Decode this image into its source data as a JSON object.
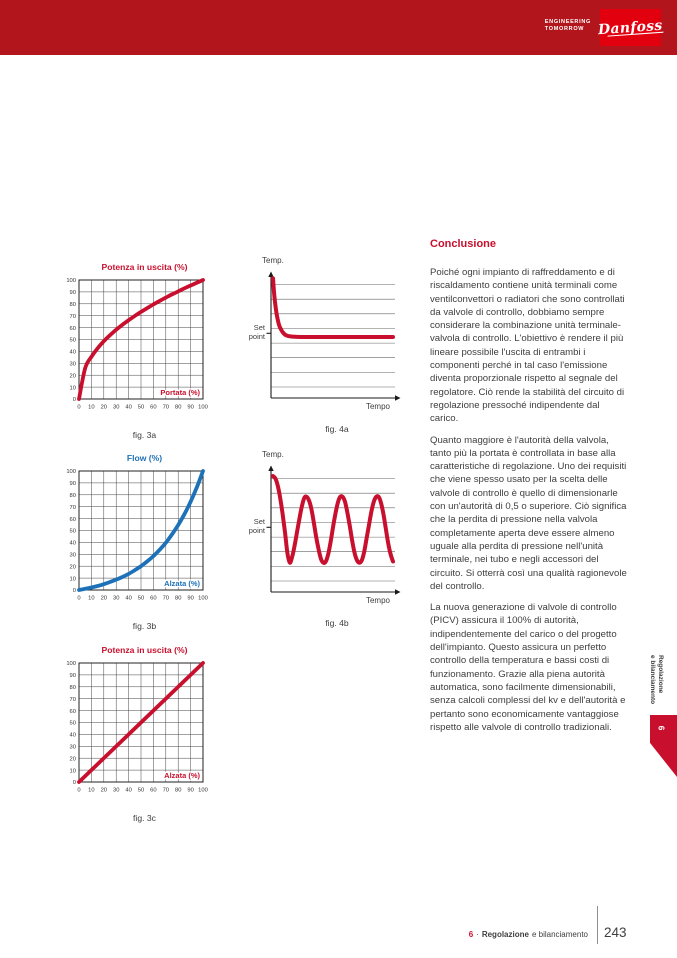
{
  "header": {
    "tagline_line1": "ENGINEERING",
    "tagline_line2": "TOMORROW",
    "logo_text": "Danfoss"
  },
  "article": {
    "heading": "Conclusione",
    "paragraphs": [
      "Poiché ogni impianto di raffreddamento e di riscaldamento contiene unità terminali come ventilconvettori o radiatori che sono controllati da valvole di controllo, dobbiamo sempre considerare la combinazione unità terminale-valvola di controllo. L'obiettivo è rendere il più lineare possibile l'uscita di entrambi i componenti perché in tal caso l'emissione diventa proporzionale rispetto al segnale del regolatore. Ciò rende la stabilità del circuito di regolazione pressoché indipendente dal carico.",
      "Quanto maggiore è l'autorità della valvola, tanto più la portata è controllata in base alla caratteristiche di regolazione. Uno dei requisiti che viene spesso usato per la scelta delle valvole di controllo è quello di dimensionarle con un'autorità di 0,5 o superiore. Ciò significa che la perdita di pressione nella valvola completamente aperta deve essere almeno uguale alla perdita di pressione nell'unità terminale, nei tubo e negli accessori del circuito. Si otterrà così una qualità ragionevole del controllo.",
      "La nuova generazione di valvole di controllo (PICV) assicura il 100% di autorità, indipendentemente del carico o del progetto dell'impianto. Questo assicura un perfetto controllo della temperatura e bassi costi di funzionamento. Grazie alla piena autorità automatica, sono facilmente dimensionabili, senza calcoli complessi del kv e dell'autorità e pertanto sono economicamente vantaggiose rispetto alle valvole di controllo tradizionali."
    ]
  },
  "sidebar_tab": {
    "chapter_number": "6",
    "label_line1": "Regolazione",
    "label_line2": "e bilanciamento"
  },
  "footer": {
    "chapter_number": "6",
    "separator": "·",
    "section_bold": "Regolazione",
    "section_rest": "e bilanciamento",
    "page_number": "243"
  },
  "colors": {
    "brand_red": "#e2000f",
    "banner_red": "#b2161c",
    "curve_red": "#c8102e",
    "curve_blue": "#1d71b8",
    "text_gray": "#3e3e3e"
  },
  "chart_data": [
    {
      "id": "fig3a",
      "type": "line",
      "variant": "grid",
      "title": "Potenza in uscita (%)",
      "inner_xlabel": "Portata (%)",
      "caption": "fig. 3a",
      "color": "#c8102e",
      "xlim": [
        0,
        100
      ],
      "ylim": [
        0,
        100
      ],
      "grid": true,
      "ticks": [
        0,
        10,
        20,
        30,
        40,
        50,
        60,
        70,
        80,
        90,
        100
      ],
      "x": [
        0,
        5,
        10,
        15,
        20,
        25,
        30,
        35,
        40,
        45,
        50,
        55,
        60,
        65,
        70,
        75,
        80,
        85,
        90,
        95,
        100
      ],
      "y": [
        0,
        26,
        35.5,
        42.6,
        48.6,
        53.6,
        58.2,
        62.4,
        66.2,
        69.8,
        73.2,
        76.4,
        79.5,
        82.4,
        85.2,
        87.9,
        90.4,
        93,
        95.4,
        97.7,
        100
      ]
    },
    {
      "id": "fig4a",
      "type": "line",
      "variant": "time",
      "ylabel": "Temp.",
      "xlabel": "Tempo",
      "setpoint_label": "Set point",
      "caption": "fig. 4a",
      "color": "#c8102e",
      "xlim": [
        0,
        100
      ],
      "ylim": [
        0,
        100
      ],
      "setpoint": 53,
      "gridlines": [
        9,
        21,
        33,
        45,
        57,
        69,
        81,
        93
      ],
      "x": [
        0,
        1,
        2,
        3,
        4,
        5,
        6,
        8,
        10,
        12,
        14,
        16,
        20,
        30,
        40,
        50,
        60,
        70,
        80,
        90,
        100
      ],
      "y": [
        98,
        85,
        76,
        69,
        64,
        60,
        57.5,
        54,
        52,
        51,
        50.6,
        50.3,
        50.1,
        50,
        50,
        50,
        50,
        50,
        50,
        50,
        50
      ]
    },
    {
      "id": "fig3b",
      "type": "line",
      "variant": "grid",
      "title": "Flow (%)",
      "inner_xlabel": "Alzata (%)",
      "caption": "fig. 3b",
      "color": "#1d71b8",
      "xlim": [
        0,
        100
      ],
      "ylim": [
        0,
        100
      ],
      "grid": true,
      "ticks": [
        0,
        10,
        20,
        30,
        40,
        50,
        60,
        70,
        80,
        90,
        100
      ],
      "x": [
        0,
        5,
        10,
        15,
        20,
        25,
        30,
        35,
        40,
        45,
        50,
        55,
        60,
        65,
        70,
        75,
        80,
        85,
        90,
        95,
        100
      ],
      "y": [
        0,
        1,
        2.1,
        3.4,
        4.9,
        6.7,
        8.7,
        10.9,
        13.5,
        16.6,
        20,
        24,
        28.5,
        33.8,
        39.7,
        46.7,
        54.6,
        63.7,
        74.2,
        86.2,
        100
      ]
    },
    {
      "id": "fig4b",
      "type": "line",
      "variant": "time",
      "ylabel": "Temp.",
      "xlabel": "Tempo",
      "setpoint_label": "Set point",
      "caption": "fig. 4b",
      "color": "#c8102e",
      "xlim": [
        0,
        100
      ],
      "ylim": [
        0,
        100
      ],
      "setpoint": 53,
      "gridlines": [
        9,
        21,
        33,
        45,
        57,
        69,
        81,
        93
      ],
      "x": [
        0,
        2,
        4,
        6,
        8,
        10,
        12,
        14,
        16,
        18,
        20,
        22,
        24,
        26,
        28,
        30,
        32,
        34,
        36,
        38,
        40,
        42,
        44,
        46,
        48,
        50,
        52,
        54,
        56,
        58,
        60,
        62,
        64,
        66,
        68,
        70,
        72,
        74,
        76,
        78,
        80,
        82,
        84,
        86,
        88,
        90,
        92,
        94,
        96,
        98,
        100
      ],
      "y": [
        95,
        93,
        87,
        77,
        64,
        49,
        32,
        24,
        29,
        38,
        49,
        60,
        70,
        77,
        78,
        75,
        68,
        57,
        45,
        35,
        27,
        24,
        25,
        31,
        41,
        53,
        64,
        73,
        78,
        78,
        74,
        65,
        54,
        42,
        32,
        26,
        24,
        26,
        33,
        44,
        55,
        66,
        74,
        78,
        78,
        73,
        64,
        52,
        40,
        31,
        25
      ]
    },
    {
      "id": "fig3c",
      "type": "line",
      "variant": "grid",
      "title": "Potenza in uscita (%)",
      "inner_xlabel": "Alzata (%)",
      "caption": "fig. 3c",
      "color": "#c8102e",
      "xlim": [
        0,
        100
      ],
      "ylim": [
        0,
        100
      ],
      "grid": true,
      "ticks": [
        0,
        10,
        20,
        30,
        40,
        50,
        60,
        70,
        80,
        90,
        100
      ],
      "x": [
        0,
        100
      ],
      "y": [
        0,
        100
      ]
    }
  ]
}
